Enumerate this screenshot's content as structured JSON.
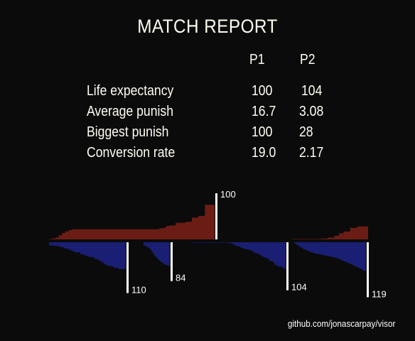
{
  "title": "MATCH REPORT",
  "table": {
    "columns": [
      "P1",
      "P2"
    ],
    "rows": [
      {
        "label": "Life expectancy",
        "p1": "100",
        "p2": "104"
      },
      {
        "label": "Average punish",
        "p1": "16.7",
        "p2": "3.08"
      },
      {
        "label": "Biggest punish",
        "p1": "100",
        "p2": "28"
      },
      {
        "label": "Conversion rate",
        "p1": "19.0",
        "p2": "2.17"
      }
    ]
  },
  "footer": "github.com/jonascarpay/visor",
  "colors": {
    "p1": "#6b1d15",
    "p2": "#1a1f73",
    "marker": "#ffffff",
    "background": "#0b0b0b"
  },
  "chart_data": {
    "type": "area",
    "description_free": true,
    "top": [
      {
        "end_label": "100",
        "steps": [
          1,
          2,
          4,
          9,
          14,
          17,
          20,
          22,
          22,
          22,
          22,
          22,
          22,
          22,
          22,
          22,
          22,
          22,
          22,
          22,
          22,
          22,
          22,
          22,
          22,
          22,
          22,
          22,
          22,
          22,
          22,
          22,
          22,
          22,
          24,
          25,
          29,
          30,
          30,
          36,
          36,
          36,
          38,
          38,
          47,
          47,
          51,
          51,
          75,
          75,
          75,
          100
        ]
      },
      {
        "end_label": "",
        "steps": [
          1,
          1,
          1,
          1,
          1,
          1,
          1,
          1,
          1,
          1,
          1,
          1,
          1,
          2,
          2,
          2,
          4,
          4,
          4,
          8,
          8,
          13,
          13,
          17,
          17,
          17,
          25,
          25,
          25,
          28,
          28,
          28,
          28,
          28
        ]
      }
    ],
    "bottom": [
      {
        "end_label": "110",
        "steps": [
          7,
          7,
          8,
          8,
          10,
          10,
          13,
          14,
          16,
          18,
          21,
          22,
          22,
          26,
          27,
          29,
          31,
          32,
          33,
          36,
          38,
          41,
          44,
          48,
          51,
          51,
          53,
          55,
          56,
          58,
          58,
          58,
          110
        ]
      },
      {
        "end_label": "84",
        "steps": [
          7,
          8,
          10,
          12,
          15,
          20,
          25,
          30,
          33,
          37,
          40,
          43,
          45,
          47,
          49,
          50,
          52,
          84
        ]
      },
      {
        "end_label": "104",
        "steps": [
          1,
          1,
          1,
          1,
          1,
          1,
          1,
          1,
          1,
          1,
          1,
          1,
          1,
          1,
          1,
          1,
          1,
          1,
          1,
          1,
          2,
          2,
          4,
          6,
          8,
          9,
          11,
          13,
          14,
          15,
          15,
          17,
          18,
          21,
          23,
          24,
          26,
          28,
          31,
          33,
          34,
          36,
          40,
          41,
          44,
          49,
          51,
          53,
          53,
          55,
          58,
          104
        ]
      },
      {
        "end_label": "119",
        "steps": [
          3,
          6,
          9,
          12,
          15,
          17,
          19,
          21,
          22,
          24,
          25,
          26,
          27,
          28,
          29,
          30,
          31,
          32,
          33,
          34,
          36,
          38,
          40,
          42,
          44,
          46,
          48,
          51,
          53,
          55,
          57,
          60,
          62,
          119
        ]
      }
    ]
  }
}
